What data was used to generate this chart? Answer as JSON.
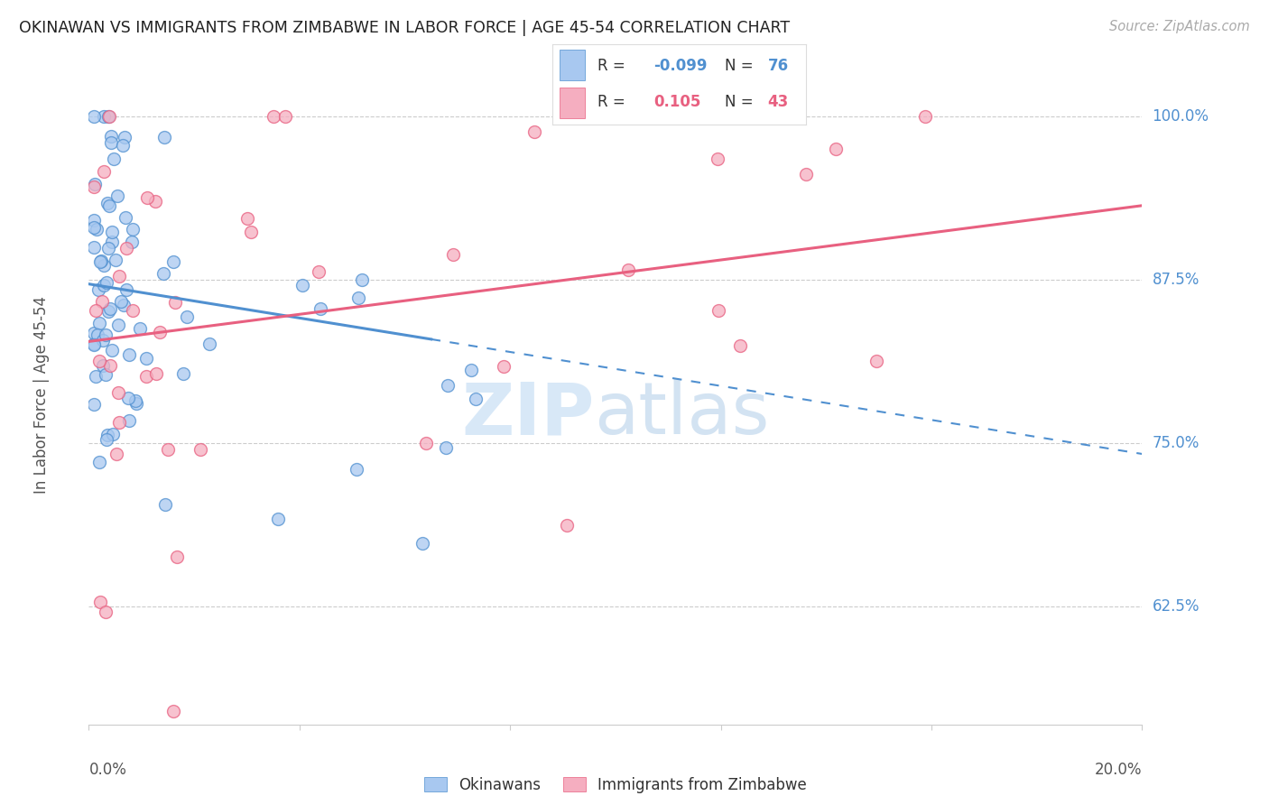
{
  "title": "OKINAWAN VS IMMIGRANTS FROM ZIMBABWE IN LABOR FORCE | AGE 45-54 CORRELATION CHART",
  "source": "Source: ZipAtlas.com",
  "ylabel": "In Labor Force | Age 45-54",
  "ytick_labels": [
    "62.5%",
    "75.0%",
    "87.5%",
    "100.0%"
  ],
  "ytick_values": [
    0.625,
    0.75,
    0.875,
    1.0
  ],
  "xlim": [
    0.0,
    0.2
  ],
  "ylim": [
    0.535,
    1.04
  ],
  "blue_color": "#a8c8f0",
  "pink_color": "#f5aec0",
  "blue_line_color": "#5090d0",
  "pink_line_color": "#e86080",
  "blue_R": -0.099,
  "blue_N": 76,
  "pink_R": 0.105,
  "pink_N": 43,
  "legend_label_blue": "Okinawans",
  "legend_label_pink": "Immigrants from Zimbabwe",
  "blue_line_solid_x0": 0.0,
  "blue_line_solid_x1": 0.065,
  "blue_line_y_at_0": 0.872,
  "blue_line_slope": -0.65,
  "pink_line_y_at_0": 0.828,
  "pink_line_slope": 0.52,
  "watermark_zip_color": "#c8dff5",
  "watermark_atlas_color": "#b0cce8"
}
